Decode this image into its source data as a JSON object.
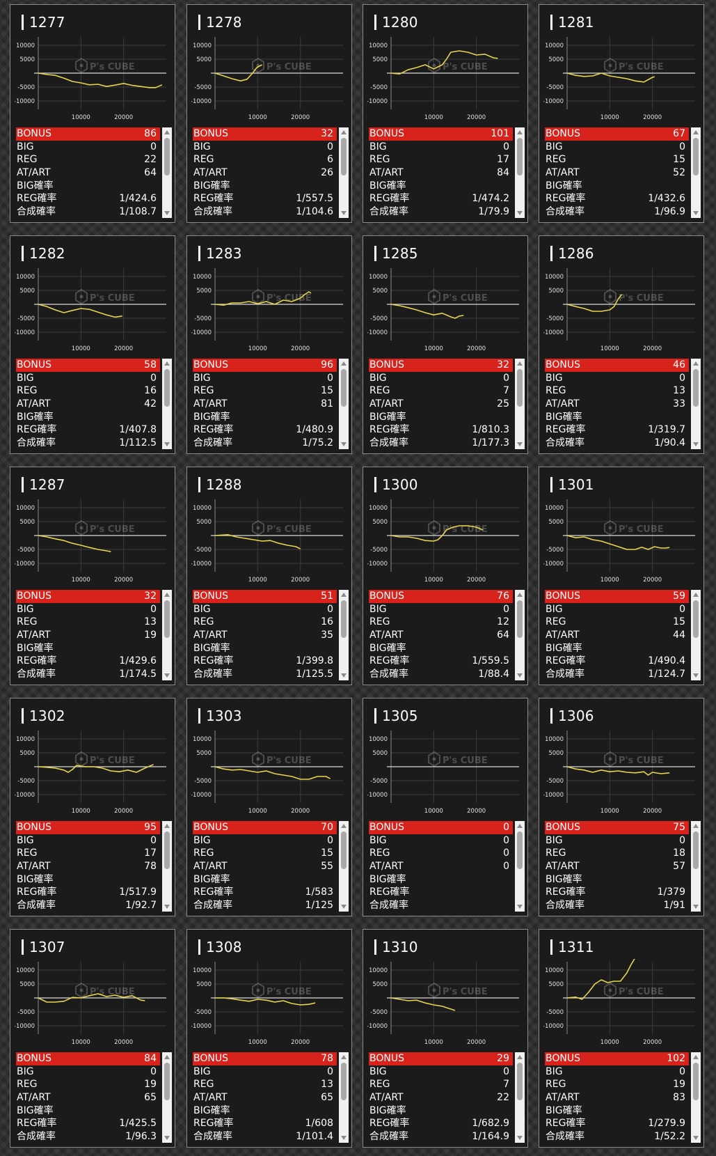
{
  "labels": {
    "bonus": "BONUS",
    "big": "BIG",
    "reg": "REG",
    "at": "AT/ART",
    "big_rate": "BIG確率",
    "reg_rate": "REG確率",
    "total_rate": "合成確率"
  },
  "chart_axis": {
    "y_ticks": [
      "10000",
      "5000",
      "-5000",
      "-10000"
    ],
    "x_ticks": [
      "10000",
      "20000"
    ],
    "ylim": [
      -13000,
      13000
    ],
    "xlim": [
      0,
      30000
    ]
  },
  "watermark": "P's CUBE",
  "colors": {
    "line": "#e8d64a",
    "bonus_bar": "#d8231c"
  },
  "machines": [
    {
      "id": "1277",
      "bonus": "86",
      "big": "0",
      "reg": "22",
      "at": "64",
      "big_rate": "",
      "reg_rate": "1/424.6",
      "total_rate": "1/108.7",
      "graph": [
        [
          0,
          0
        ],
        [
          2000,
          -500
        ],
        [
          4000,
          -800
        ],
        [
          6000,
          -1800
        ],
        [
          8000,
          -3000
        ],
        [
          10000,
          -3500
        ],
        [
          12000,
          -4200
        ],
        [
          14000,
          -4000
        ],
        [
          16000,
          -4800
        ],
        [
          18000,
          -4300
        ],
        [
          20000,
          -3700
        ],
        [
          22000,
          -4400
        ],
        [
          24000,
          -4800
        ],
        [
          26000,
          -5200
        ],
        [
          27500,
          -5200
        ],
        [
          29000,
          -4200
        ]
      ]
    },
    {
      "id": "1278",
      "bonus": "32",
      "big": "0",
      "reg": "6",
      "at": "26",
      "big_rate": "",
      "reg_rate": "1/557.5",
      "total_rate": "1/104.6",
      "graph": [
        [
          0,
          0
        ],
        [
          2000,
          -1000
        ],
        [
          4000,
          -2000
        ],
        [
          6000,
          -2800
        ],
        [
          7500,
          -2200
        ],
        [
          8800,
          0
        ],
        [
          9800,
          2000
        ],
        [
          11000,
          3000
        ]
      ]
    },
    {
      "id": "1280",
      "bonus": "101",
      "big": "0",
      "reg": "17",
      "at": "84",
      "big_rate": "",
      "reg_rate": "1/474.2",
      "total_rate": "1/79.9",
      "graph": [
        [
          0,
          0
        ],
        [
          2000,
          -300
        ],
        [
          4000,
          1200
        ],
        [
          6000,
          2000
        ],
        [
          8000,
          3000
        ],
        [
          10000,
          1500
        ],
        [
          12000,
          3000
        ],
        [
          13000,
          5000
        ],
        [
          14000,
          7500
        ],
        [
          16000,
          8000
        ],
        [
          18000,
          7500
        ],
        [
          20000,
          6500
        ],
        [
          22000,
          6800
        ],
        [
          24000,
          5500
        ],
        [
          25000,
          5300
        ]
      ]
    },
    {
      "id": "1281",
      "bonus": "67",
      "big": "0",
      "reg": "15",
      "at": "52",
      "big_rate": "",
      "reg_rate": "1/432.6",
      "total_rate": "1/96.9",
      "graph": [
        [
          0,
          0
        ],
        [
          2000,
          -800
        ],
        [
          4000,
          -1200
        ],
        [
          6000,
          -1000
        ],
        [
          8000,
          0
        ],
        [
          10000,
          -1000
        ],
        [
          12000,
          -1500
        ],
        [
          14000,
          -2000
        ],
        [
          16000,
          -2800
        ],
        [
          18000,
          -3200
        ],
        [
          20000,
          -1500
        ],
        [
          20500,
          -1300
        ]
      ]
    },
    {
      "id": "1282",
      "bonus": "58",
      "big": "0",
      "reg": "16",
      "at": "42",
      "big_rate": "",
      "reg_rate": "1/407.8",
      "total_rate": "1/112.5",
      "graph": [
        [
          0,
          0
        ],
        [
          2000,
          -800
        ],
        [
          4000,
          -2000
        ],
        [
          6000,
          -3000
        ],
        [
          8000,
          -2200
        ],
        [
          10000,
          -1500
        ],
        [
          12000,
          -1800
        ],
        [
          14000,
          -2800
        ],
        [
          16000,
          -3800
        ],
        [
          18000,
          -4600
        ],
        [
          19700,
          -4200
        ]
      ]
    },
    {
      "id": "1283",
      "bonus": "96",
      "big": "0",
      "reg": "15",
      "at": "81",
      "big_rate": "",
      "reg_rate": "1/480.9",
      "total_rate": "1/75.2",
      "graph": [
        [
          0,
          0
        ],
        [
          2000,
          -300
        ],
        [
          4000,
          500
        ],
        [
          6000,
          500
        ],
        [
          8000,
          1000
        ],
        [
          10000,
          200
        ],
        [
          12000,
          1000
        ],
        [
          14000,
          0
        ],
        [
          16000,
          1500
        ],
        [
          18000,
          1000
        ],
        [
          20000,
          2200
        ],
        [
          21000,
          3500
        ],
        [
          22000,
          4500
        ],
        [
          22500,
          4000
        ]
      ]
    },
    {
      "id": "1285",
      "bonus": "32",
      "big": "0",
      "reg": "7",
      "at": "25",
      "big_rate": "",
      "reg_rate": "1/810.3",
      "total_rate": "1/177.3",
      "graph": [
        [
          0,
          0
        ],
        [
          2000,
          -500
        ],
        [
          4000,
          -1200
        ],
        [
          6000,
          -2000
        ],
        [
          8000,
          -3000
        ],
        [
          10000,
          -3800
        ],
        [
          12000,
          -3200
        ],
        [
          14000,
          -4500
        ],
        [
          15000,
          -5000
        ],
        [
          16000,
          -4200
        ],
        [
          17000,
          -4000
        ]
      ]
    },
    {
      "id": "1286",
      "bonus": "46",
      "big": "0",
      "reg": "13",
      "at": "33",
      "big_rate": "",
      "reg_rate": "1/319.7",
      "total_rate": "1/90.4",
      "graph": [
        [
          0,
          0
        ],
        [
          2000,
          -800
        ],
        [
          4000,
          -1500
        ],
        [
          6000,
          -2500
        ],
        [
          8000,
          -2500
        ],
        [
          10000,
          -2000
        ],
        [
          11000,
          -800
        ],
        [
          12000,
          2000
        ],
        [
          12800,
          3500
        ]
      ]
    },
    {
      "id": "1287",
      "bonus": "32",
      "big": "0",
      "reg": "13",
      "at": "19",
      "big_rate": "",
      "reg_rate": "1/429.6",
      "total_rate": "1/174.5",
      "graph": [
        [
          0,
          0
        ],
        [
          2000,
          -500
        ],
        [
          4000,
          -1200
        ],
        [
          6000,
          -1800
        ],
        [
          8000,
          -2800
        ],
        [
          10000,
          -3500
        ],
        [
          12000,
          -4300
        ],
        [
          14000,
          -5000
        ],
        [
          16000,
          -5500
        ],
        [
          17000,
          -5800
        ]
      ]
    },
    {
      "id": "1288",
      "bonus": "51",
      "big": "0",
      "reg": "16",
      "at": "35",
      "big_rate": "",
      "reg_rate": "1/399.8",
      "total_rate": "1/125.5",
      "graph": [
        [
          0,
          0
        ],
        [
          3000,
          300
        ],
        [
          5000,
          -500
        ],
        [
          7000,
          -1000
        ],
        [
          9000,
          -1500
        ],
        [
          11000,
          -2000
        ],
        [
          13000,
          -1800
        ],
        [
          15000,
          -2800
        ],
        [
          17000,
          -3500
        ],
        [
          19000,
          -4000
        ],
        [
          20000,
          -4800
        ]
      ]
    },
    {
      "id": "1300",
      "bonus": "76",
      "big": "0",
      "reg": "12",
      "at": "64",
      "big_rate": "",
      "reg_rate": "1/559.5",
      "total_rate": "1/88.4",
      "graph": [
        [
          0,
          0
        ],
        [
          2000,
          -500
        ],
        [
          4000,
          -500
        ],
        [
          6000,
          -1000
        ],
        [
          8000,
          -1800
        ],
        [
          10000,
          -2000
        ],
        [
          11000,
          -1500
        ],
        [
          12000,
          0
        ],
        [
          13000,
          2000
        ],
        [
          14500,
          3000
        ],
        [
          16000,
          3500
        ],
        [
          18000,
          3500
        ],
        [
          20000,
          3000
        ],
        [
          21500,
          2000
        ]
      ]
    },
    {
      "id": "1301",
      "bonus": "59",
      "big": "0",
      "reg": "15",
      "at": "44",
      "big_rate": "",
      "reg_rate": "1/490.4",
      "total_rate": "1/124.7",
      "graph": [
        [
          0,
          0
        ],
        [
          2000,
          -800
        ],
        [
          4000,
          -500
        ],
        [
          6000,
          -1500
        ],
        [
          8000,
          -2000
        ],
        [
          10000,
          -3000
        ],
        [
          12000,
          -4000
        ],
        [
          14000,
          -5000
        ],
        [
          16000,
          -5000
        ],
        [
          17500,
          -4200
        ],
        [
          19000,
          -5000
        ],
        [
          20500,
          -4000
        ],
        [
          22000,
          -4500
        ],
        [
          23000,
          -4500
        ],
        [
          24000,
          -4300
        ]
      ]
    },
    {
      "id": "1302",
      "bonus": "95",
      "big": "0",
      "reg": "17",
      "at": "78",
      "big_rate": "",
      "reg_rate": "1/517.9",
      "total_rate": "1/92.7",
      "graph": [
        [
          0,
          0
        ],
        [
          2000,
          -200
        ],
        [
          4000,
          -500
        ],
        [
          6000,
          -1200
        ],
        [
          7000,
          -2000
        ],
        [
          8000,
          -1000
        ],
        [
          9000,
          500
        ],
        [
          11000,
          0
        ],
        [
          13000,
          0
        ],
        [
          15000,
          -500
        ],
        [
          17000,
          -1500
        ],
        [
          19000,
          -1800
        ],
        [
          21000,
          -1200
        ],
        [
          23000,
          -2000
        ],
        [
          25000,
          -500
        ],
        [
          27000,
          800
        ]
      ]
    },
    {
      "id": "1303",
      "bonus": "70",
      "big": "0",
      "reg": "15",
      "at": "55",
      "big_rate": "",
      "reg_rate": "1/583",
      "total_rate": "1/125",
      "graph": [
        [
          0,
          0
        ],
        [
          2000,
          -800
        ],
        [
          4000,
          -1200
        ],
        [
          6000,
          -1000
        ],
        [
          8000,
          -1500
        ],
        [
          10000,
          -2000
        ],
        [
          12000,
          -1500
        ],
        [
          14000,
          -2500
        ],
        [
          16000,
          -3000
        ],
        [
          18000,
          -3500
        ],
        [
          20000,
          -4500
        ],
        [
          22000,
          -4500
        ],
        [
          24000,
          -3500
        ],
        [
          26000,
          -3500
        ],
        [
          27000,
          -4300
        ]
      ]
    },
    {
      "id": "1305",
      "bonus": "0",
      "big": "0",
      "reg": "0",
      "at": "0",
      "big_rate": "",
      "reg_rate": "",
      "total_rate": "",
      "graph": []
    },
    {
      "id": "1306",
      "bonus": "75",
      "big": "0",
      "reg": "18",
      "at": "57",
      "big_rate": "",
      "reg_rate": "1/379",
      "total_rate": "1/91",
      "graph": [
        [
          0,
          0
        ],
        [
          2000,
          -800
        ],
        [
          4000,
          -1200
        ],
        [
          6000,
          -2000
        ],
        [
          8000,
          -1200
        ],
        [
          10000,
          -1800
        ],
        [
          12000,
          -1500
        ],
        [
          14000,
          -2000
        ],
        [
          16000,
          -2200
        ],
        [
          18000,
          -1800
        ],
        [
          19000,
          -3000
        ],
        [
          20000,
          -2000
        ],
        [
          22000,
          -2500
        ],
        [
          24000,
          -2200
        ]
      ]
    },
    {
      "id": "1307",
      "bonus": "84",
      "big": "0",
      "reg": "19",
      "at": "65",
      "big_rate": "",
      "reg_rate": "1/425.5",
      "total_rate": "1/96.3",
      "graph": [
        [
          0,
          0
        ],
        [
          2000,
          -1500
        ],
        [
          4000,
          -1500
        ],
        [
          6000,
          -1200
        ],
        [
          8000,
          200
        ],
        [
          10000,
          0
        ],
        [
          12000,
          800
        ],
        [
          14000,
          1500
        ],
        [
          16000,
          500
        ],
        [
          18000,
          1000
        ],
        [
          20000,
          200
        ],
        [
          22000,
          800
        ],
        [
          24000,
          -800
        ],
        [
          25000,
          -1000
        ]
      ]
    },
    {
      "id": "1308",
      "bonus": "78",
      "big": "0",
      "reg": "13",
      "at": "65",
      "big_rate": "",
      "reg_rate": "1/608",
      "total_rate": "1/101.4",
      "graph": [
        [
          0,
          0
        ],
        [
          2000,
          0
        ],
        [
          4000,
          -300
        ],
        [
          6000,
          -800
        ],
        [
          8000,
          -1200
        ],
        [
          10000,
          -500
        ],
        [
          12000,
          -800
        ],
        [
          14000,
          -1500
        ],
        [
          16000,
          -1000
        ],
        [
          18000,
          -2000
        ],
        [
          20000,
          -2500
        ],
        [
          22000,
          -2300
        ],
        [
          23500,
          -1800
        ]
      ]
    },
    {
      "id": "1310",
      "bonus": "29",
      "big": "0",
      "reg": "7",
      "at": "22",
      "big_rate": "",
      "reg_rate": "1/682.9",
      "total_rate": "1/164.9",
      "graph": [
        [
          0,
          0
        ],
        [
          2000,
          -500
        ],
        [
          4000,
          -1000
        ],
        [
          6000,
          -800
        ],
        [
          8000,
          -1800
        ],
        [
          10000,
          -2500
        ],
        [
          12000,
          -3000
        ],
        [
          14000,
          -4000
        ],
        [
          15000,
          -4500
        ]
      ]
    },
    {
      "id": "1311",
      "bonus": "102",
      "big": "0",
      "reg": "19",
      "at": "83",
      "big_rate": "",
      "reg_rate": "1/279.9",
      "total_rate": "1/52.2",
      "graph": [
        [
          0,
          0
        ],
        [
          2000,
          300
        ],
        [
          3500,
          -500
        ],
        [
          5000,
          2000
        ],
        [
          6500,
          5000
        ],
        [
          8000,
          6500
        ],
        [
          9500,
          5500
        ],
        [
          11000,
          6000
        ],
        [
          12500,
          6000
        ],
        [
          14000,
          9000
        ],
        [
          15000,
          12000
        ],
        [
          16000,
          14500
        ]
      ]
    }
  ]
}
